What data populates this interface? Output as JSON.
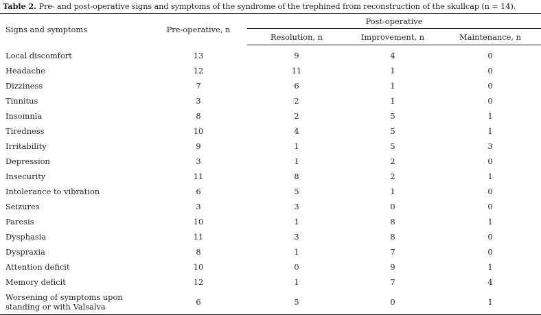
{
  "caption": {
    "label": "Table 2.",
    "text": " Pre- and post-operative signs and symptoms of the syndrome of the trephined from reconstruction of the skullcap (n = 14)."
  },
  "headers": {
    "signs": "Signs and symptoms",
    "pre": "Pre-operative, n",
    "post": "Post-operative",
    "resolution": "Resolution, n",
    "improvement": "Improvement, n",
    "maintenance": "Maintenance, n"
  },
  "rows": [
    {
      "name": "Local discomfort",
      "pre": "13",
      "res": "9",
      "imp": "4",
      "main": "0"
    },
    {
      "name": "Headache",
      "pre": "12",
      "res": "11",
      "imp": "1",
      "main": "0"
    },
    {
      "name": "Dizziness",
      "pre": "7",
      "res": "6",
      "imp": "1",
      "main": "0"
    },
    {
      "name": "Tinnitus",
      "pre": "3",
      "res": "2",
      "imp": "1",
      "main": "0"
    },
    {
      "name": "Insomnia",
      "pre": "8",
      "res": "2",
      "imp": "5",
      "main": "1"
    },
    {
      "name": "Tiredness",
      "pre": "10",
      "res": "4",
      "imp": "5",
      "main": "1"
    },
    {
      "name": "Irritability",
      "pre": "9",
      "res": "1",
      "imp": "5",
      "main": "3"
    },
    {
      "name": "Depression",
      "pre": "3",
      "res": "1",
      "imp": "2",
      "main": "0"
    },
    {
      "name": "Insecurity",
      "pre": "11",
      "res": "8",
      "imp": "2",
      "main": "1"
    },
    {
      "name": "Intolerance to vibration",
      "pre": "6",
      "res": "5",
      "imp": "1",
      "main": "0"
    },
    {
      "name": "Seizures",
      "pre": "3",
      "res": "3",
      "imp": "0",
      "main": "0"
    },
    {
      "name": "Paresis",
      "pre": "10",
      "res": "1",
      "imp": "8",
      "main": "1"
    },
    {
      "name": "Dysphasia",
      "pre": "11",
      "res": "3",
      "imp": "8",
      "main": "0"
    },
    {
      "name": "Dyspraxia",
      "pre": "8",
      "res": "1",
      "imp": "7",
      "main": "0"
    },
    {
      "name": "Attention deficit",
      "pre": "10",
      "res": "0",
      "imp": "9",
      "main": "1"
    },
    {
      "name": "Memory deficit",
      "pre": "12",
      "res": "1",
      "imp": "7",
      "main": "4"
    }
  ],
  "last_row": {
    "name_line1": "Worsening of symptoms upon",
    "name_line2": "standing or with Valsalva",
    "pre": "6",
    "res": "5",
    "imp": "0",
    "main": "1"
  }
}
